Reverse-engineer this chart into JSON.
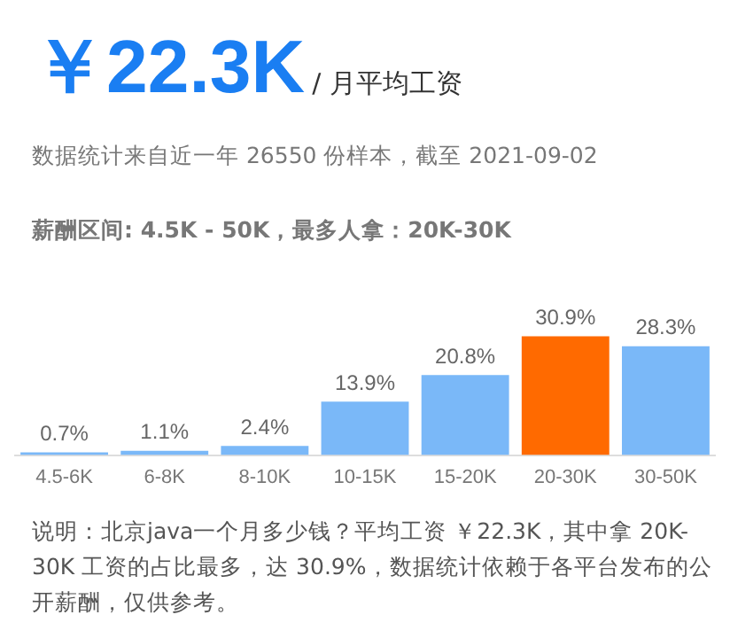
{
  "chart_data": {
    "type": "bar",
    "title": "￥22.3K",
    "subtitle": "/ 月平均工资",
    "annotations": [
      "数据统计来自近一年 26550 份样本，截至 2021-09-02",
      "薪酬区间: 4.5K - 50K，最多人拿：20K-30K",
      "说明：北京java一个月多少钱？平均工资 ￥22.3K，其中拿 20K-30K 工资的占比最多，达 30.9%，数据统计依赖于各平台发布的公开薪酬，仅供参考。"
    ],
    "categories": [
      "4.5-6K",
      "6-8K",
      "8-10K",
      "10-15K",
      "15-20K",
      "20-30K",
      "30-50K"
    ],
    "values": [
      0.7,
      1.1,
      2.4,
      13.9,
      20.8,
      30.9,
      28.3
    ],
    "colors": [
      "#7ab8f8",
      "#7ab8f8",
      "#7ab8f8",
      "#7ab8f8",
      "#7ab8f8",
      "#ff6a00",
      "#7ab8f8"
    ],
    "value_labels": [
      "0.7%",
      "1.1%",
      "2.4%",
      "13.9%",
      "20.8%",
      "30.9%",
      "28.3%"
    ],
    "grid": false,
    "legend": false
  }
}
